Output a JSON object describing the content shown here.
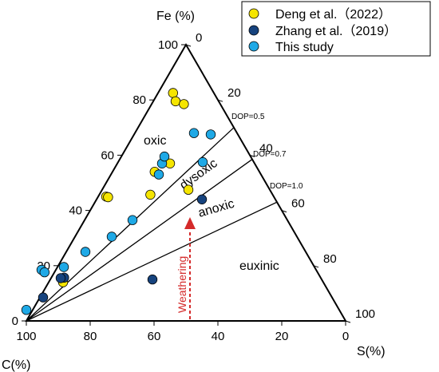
{
  "chart_data": {
    "type": "scatter",
    "subtype": "ternary",
    "axes": {
      "top": {
        "label": "Fe (%)",
        "ticks": [
          0,
          20,
          40,
          60,
          80,
          100
        ]
      },
      "left": {
        "label": "C(%)",
        "ticks": [
          100,
          80,
          60,
          40,
          20,
          0
        ]
      },
      "right": {
        "label": "S(%)",
        "ticks": [
          0,
          20,
          40,
          60,
          80,
          100
        ]
      }
    },
    "tick_labels": {
      "fe_left_side": [
        "100",
        "80",
        "60",
        "40",
        "20",
        "0"
      ],
      "bottom": [
        "100",
        "80",
        "60",
        "40",
        "20",
        "0"
      ],
      "right_side": [
        "0",
        "20",
        "40",
        "60",
        "80",
        "100"
      ]
    },
    "dop_lines": [
      {
        "label": "DOP=0.5",
        "value": 0.5
      },
      {
        "label": "DOP=0.7",
        "value": 0.7
      },
      {
        "label": "DOP=1.0",
        "value": 1.0
      }
    ],
    "regions": [
      {
        "label": "oxic"
      },
      {
        "label": "dysoxic"
      },
      {
        "label": "anoxic"
      },
      {
        "label": "euxinic"
      }
    ],
    "annotation": {
      "label": "Weathering",
      "color": "#d42a2a"
    },
    "legend": {
      "position": "top-right"
    },
    "series": [
      {
        "name": "Deng et al.（2022）",
        "color": "#f5e500",
        "points": [
          {
            "c": 12.8,
            "fe": 82.5,
            "s": 4.7
          },
          {
            "c": 13.5,
            "fe": 79.5,
            "s": 7.0
          },
          {
            "c": 11.4,
            "fe": 78.5,
            "s": 10.1
          },
          {
            "c": 26.5,
            "fe": 57.0,
            "s": 16.5
          },
          {
            "c": 32.8,
            "fe": 54.0,
            "s": 13.2
          },
          {
            "c": 52.5,
            "fe": 45.0,
            "s": 2.5
          },
          {
            "c": 52.0,
            "fe": 44.8,
            "s": 3.2
          },
          {
            "c": 38.3,
            "fe": 45.7,
            "s": 16.0
          },
          {
            "c": 25.5,
            "fe": 47.5,
            "s": 27.0
          },
          {
            "c": 81.5,
            "fe": 14.0,
            "s": 4.5
          }
        ]
      },
      {
        "name": "Zhang et al.（2019）",
        "color": "#16437e",
        "points": [
          {
            "c": 80.5,
            "fe": 15.7,
            "s": 4.0
          },
          {
            "c": 81.5,
            "fe": 15.5,
            "s": 3.0
          },
          {
            "c": 90.5,
            "fe": 8.5,
            "s": 1.0
          },
          {
            "c": 23.0,
            "fe": 44.0,
            "s": 33.0
          },
          {
            "c": 53.0,
            "fe": 15.0,
            "s": 32.0
          }
        ]
      },
      {
        "name": "This study",
        "color": "#1fa9e6",
        "points": [
          {
            "c": 98.0,
            "fe": 4.0,
            "s": -2.0
          },
          {
            "c": 86.0,
            "fe": 18.5,
            "s": -4.5
          },
          {
            "c": 85.5,
            "fe": 17.6,
            "s": -3.1
          },
          {
            "c": 78.5,
            "fe": 19.5,
            "s": 2.0
          },
          {
            "c": 69.0,
            "fe": 25.0,
            "s": 6.0
          },
          {
            "c": 58.0,
            "fe": 30.5,
            "s": 11.5
          },
          {
            "c": 48.5,
            "fe": 36.5,
            "s": 15.0
          },
          {
            "c": 32.0,
            "fe": 53.0,
            "s": 15.0
          },
          {
            "c": 29.0,
            "fe": 57.0,
            "s": 14.0
          },
          {
            "c": 27.0,
            "fe": 59.5,
            "s": 13.5
          },
          {
            "c": 13.5,
            "fe": 68.0,
            "s": 18.5
          },
          {
            "c": 8.5,
            "fe": 67.5,
            "s": 24.0
          },
          {
            "c": 16.0,
            "fe": 57.5,
            "s": 26.5
          }
        ]
      }
    ]
  }
}
